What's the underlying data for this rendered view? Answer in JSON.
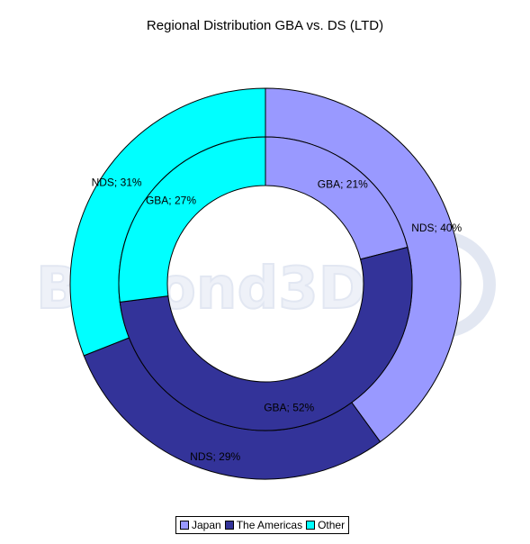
{
  "colors": {
    "japan": "#9999ff",
    "americas": "#333399",
    "other": "#00ffff"
  },
  "chart_data": {
    "type": "pie",
    "subtype": "doughnut",
    "title": "Regional Distribution GBA vs. DS (LTD)",
    "categories": [
      "Japan",
      "The Americas",
      "Other"
    ],
    "series": [
      {
        "name": "NDS",
        "ring": "outer",
        "values": [
          40,
          29,
          31
        ],
        "labels": [
          "NDS; 40%",
          "NDS; 29%",
          "NDS; 31%"
        ]
      },
      {
        "name": "GBA",
        "ring": "inner",
        "values": [
          21,
          52,
          27
        ],
        "labels": [
          "GBA; 21%",
          "GBA; 52%",
          "GBA; 27%"
        ]
      }
    ],
    "legend": {
      "position": "bottom",
      "items": [
        {
          "label": "Japan",
          "color_key": "japan"
        },
        {
          "label": "The Americas",
          "color_key": "americas"
        },
        {
          "label": "Other",
          "color_key": "other"
        }
      ]
    }
  },
  "watermark": {
    "text": "Beyond3D"
  }
}
